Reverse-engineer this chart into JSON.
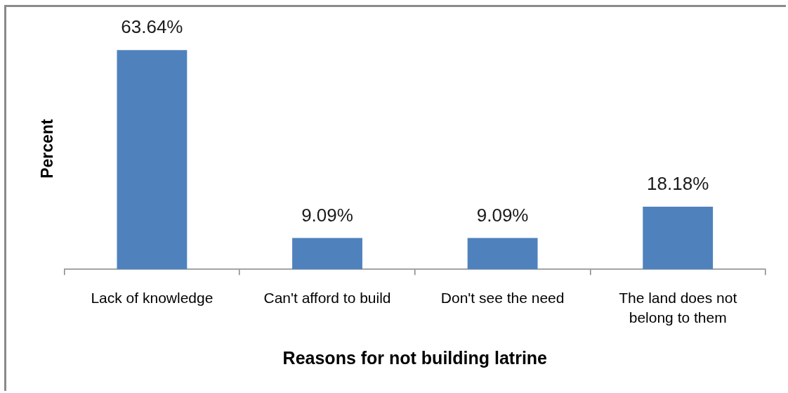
{
  "chart_data": {
    "type": "bar",
    "xlabel": "Reasons for not building latrine",
    "ylabel": "Percent",
    "categories": [
      "Lack of knowledge",
      "Can't afford to build",
      "Don't see the need",
      "The land does not belong to them"
    ],
    "values": [
      63.64,
      9.09,
      9.09,
      18.18
    ],
    "value_labels": [
      "63.64%",
      "9.09%",
      "9.09%",
      "18.18%"
    ],
    "color": "#4f81bd"
  }
}
